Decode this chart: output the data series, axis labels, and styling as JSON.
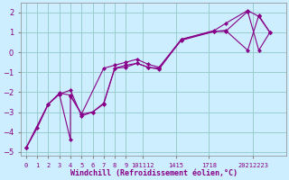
{
  "xlabel": "Windchill (Refroidissement éolien,°C)",
  "bg_color": "#cceeff",
  "line_color": "#880088",
  "grid_color": "#99cccc",
  "xlim": [
    -0.5,
    23.5
  ],
  "ylim": [
    -5.2,
    2.5
  ],
  "yticks": [
    -5,
    -4,
    -3,
    -2,
    -1,
    0,
    1,
    2
  ],
  "xtick_positions": [
    0,
    1,
    2,
    3,
    4,
    5,
    6,
    7,
    8,
    9,
    10.5,
    13.5,
    16.5,
    20.5
  ],
  "xtick_labels": [
    "0",
    "1",
    "2",
    "3",
    "4",
    "5",
    "6",
    "7",
    "8",
    "9",
    "101112",
    "1415",
    "1718",
    "20212223"
  ],
  "series1_x": [
    0,
    1,
    2,
    3,
    4,
    4,
    5,
    6,
    7,
    8,
    9,
    10,
    11,
    12,
    14,
    17,
    18,
    20,
    21,
    22
  ],
  "series1_y": [
    -4.8,
    -3.8,
    -2.6,
    -2.1,
    -4.4,
    -2.2,
    -3.1,
    -3.0,
    -2.6,
    -0.8,
    -0.65,
    -0.55,
    -0.75,
    -0.8,
    0.6,
    1.05,
    1.1,
    0.1,
    1.85,
    1.0
  ],
  "series2_x": [
    0,
    2,
    3,
    4,
    5,
    7,
    8,
    9,
    10,
    11,
    12,
    14,
    17,
    18,
    20,
    21,
    22
  ],
  "series2_y": [
    -4.8,
    -2.6,
    -2.05,
    -2.15,
    -3.1,
    -0.8,
    -0.65,
    -0.5,
    -0.35,
    -0.6,
    -0.75,
    0.65,
    1.1,
    1.45,
    2.1,
    1.8,
    1.0
  ],
  "series3_x": [
    0,
    2,
    3,
    4,
    5,
    6,
    7,
    8,
    9,
    10,
    11,
    12,
    14,
    17,
    18,
    20,
    21,
    22
  ],
  "series3_y": [
    -4.8,
    -2.6,
    -2.1,
    -1.9,
    -3.2,
    -3.0,
    -2.55,
    -0.8,
    -0.75,
    -0.55,
    -0.75,
    -0.85,
    0.65,
    1.05,
    1.05,
    2.05,
    0.1,
    1.0
  ]
}
